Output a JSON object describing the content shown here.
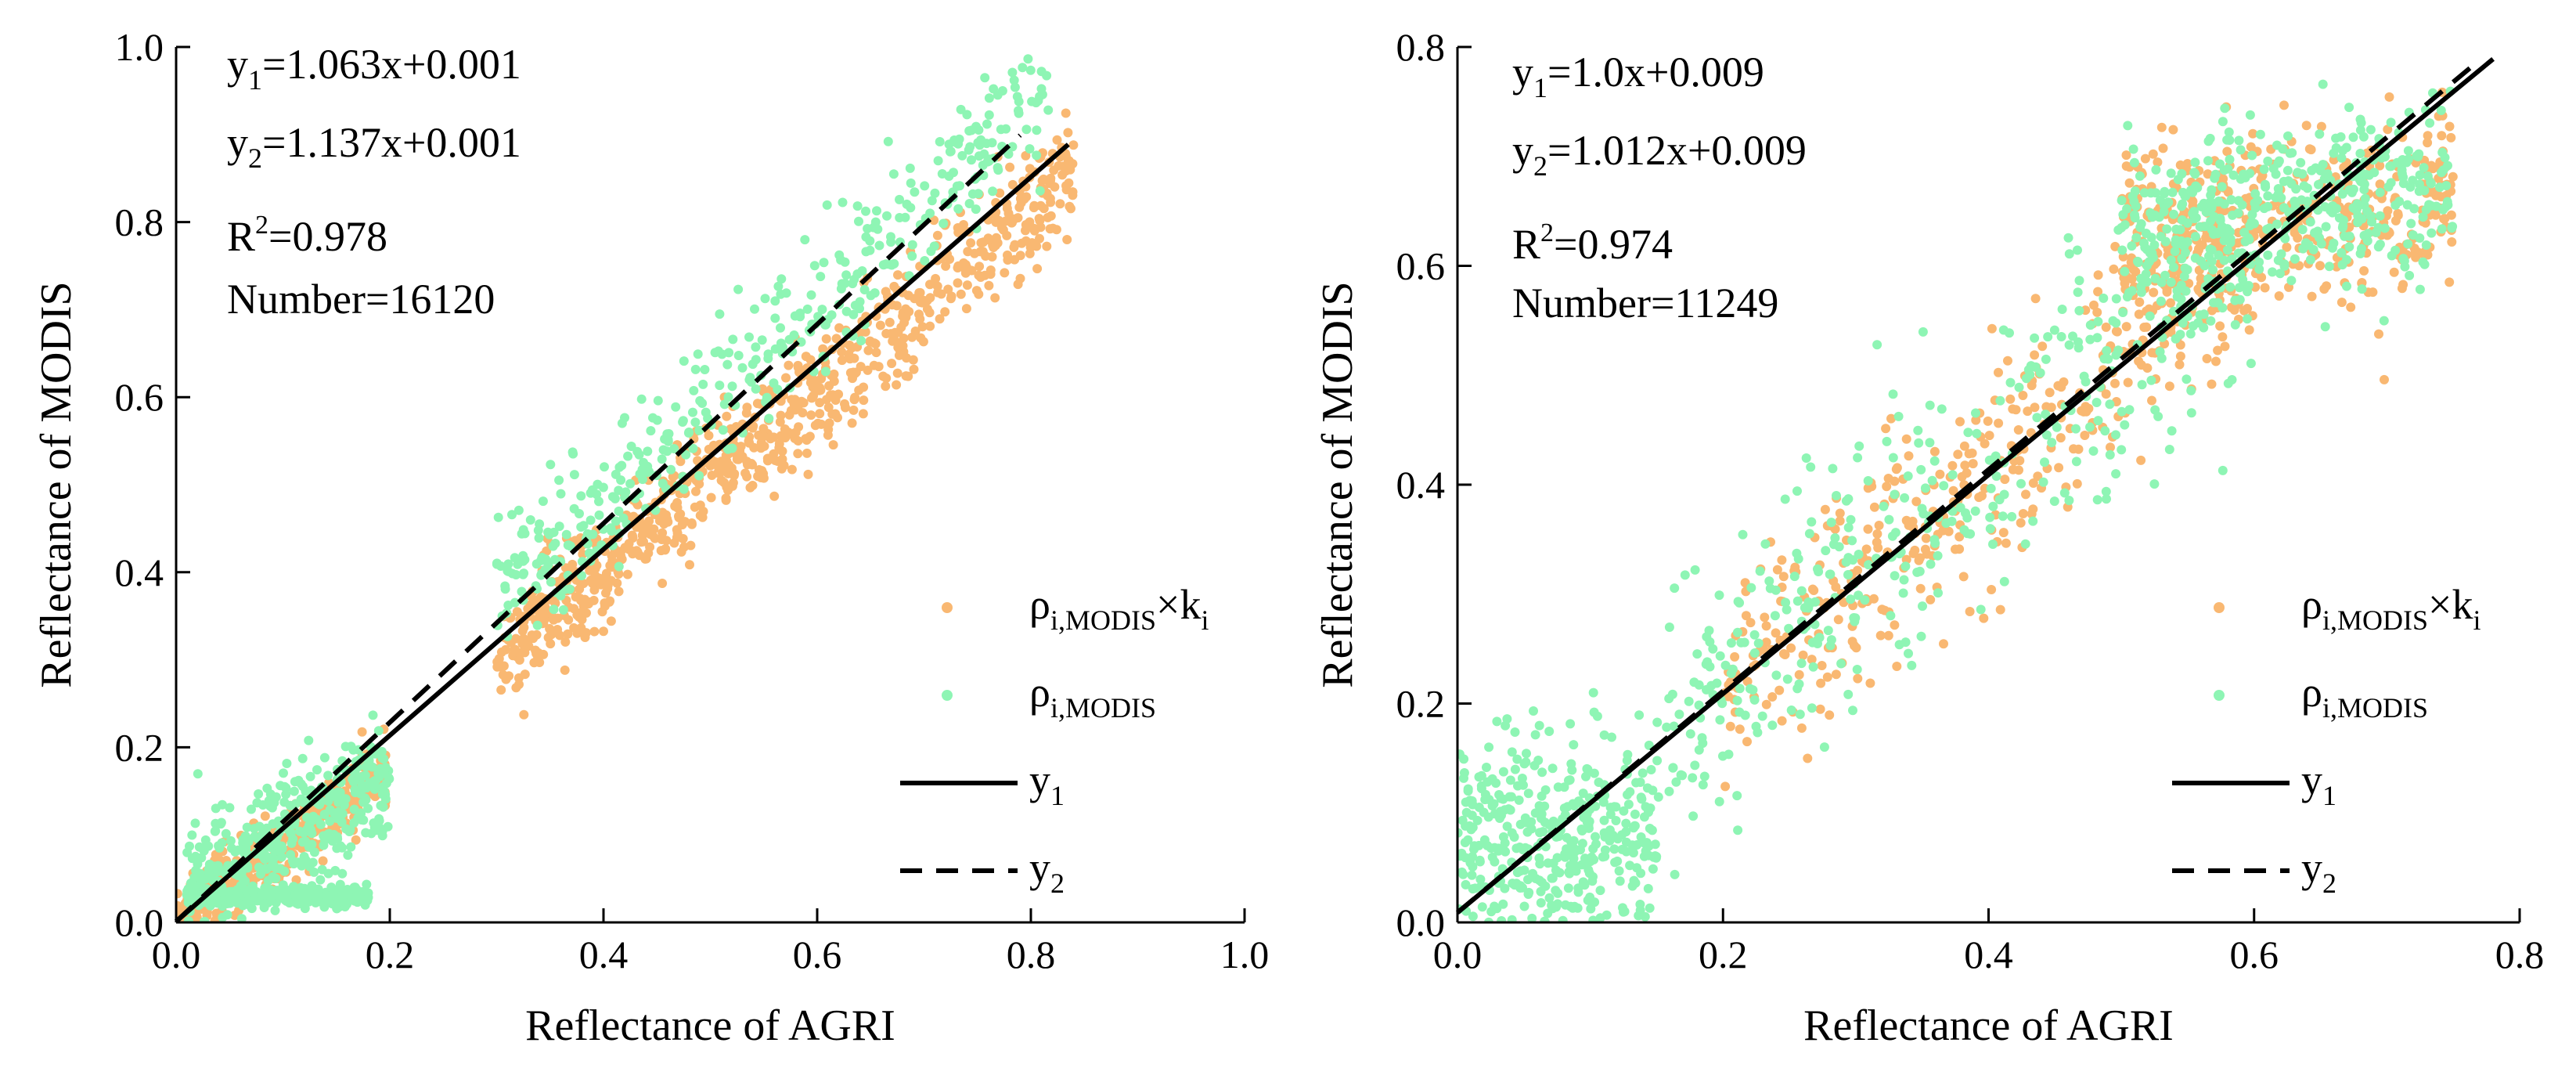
{
  "chart_data": [
    {
      "type": "scatter",
      "xlabel": "Reflectance of AGRI",
      "ylabel": "Reflectance of MODIS",
      "xlim": [
        0.0,
        1.0
      ],
      "ylim": [
        0.0,
        1.0
      ],
      "xticks": [
        "0.0",
        "0.2",
        "0.4",
        "0.6",
        "0.8",
        "1.0"
      ],
      "yticks": [
        "0.0",
        "0.2",
        "0.4",
        "0.6",
        "0.8",
        "1.0"
      ],
      "grid": false,
      "legend_position": "bottom-right",
      "annotations": {
        "eq1": {
          "pre": "y",
          "sub": "1",
          "post": "=1.063x+0.001"
        },
        "eq2": {
          "pre": "y",
          "sub": "2",
          "post": "=1.137x+0.001"
        },
        "r2": {
          "pre": "R",
          "sup": "2",
          "post": "=0.978"
        },
        "number": "Number=16120"
      },
      "series": [
        {
          "name": {
            "pre": "ρ",
            "sub": "i,MODIS",
            "post": "×k",
            "sub2": "i"
          },
          "kind": "scatter",
          "color": "#f9b872",
          "clusters": [
            {
              "x": [
                0.55,
                0.84
              ],
              "slope": 1.063,
              "intercept": -0.035,
              "spread": 0.035
            },
            {
              "x": [
                0.3,
                0.55
              ],
              "slope": 1.063,
              "intercept": -0.02,
              "spread": 0.03
            },
            {
              "x": [
                0.0,
                0.2
              ],
              "slope": 0.9,
              "intercept": 0.0,
              "spread": 0.02
            }
          ]
        },
        {
          "name": {
            "pre": "ρ",
            "sub": "i,MODIS"
          },
          "kind": "scatter",
          "color": "#8ef5b4",
          "clusters": [
            {
              "x": [
                0.3,
                0.82
              ],
              "slope": 1.137,
              "intercept": 0.02,
              "spread": 0.04
            },
            {
              "x": [
                0.01,
                0.2
              ],
              "slope": 0.7,
              "intercept": 0.03,
              "spread": 0.035
            },
            {
              "x": [
                0.01,
                0.18
              ],
              "slope": 0.0,
              "intercept": 0.03,
              "spread": 0.005
            }
          ]
        },
        {
          "name": {
            "pre": "y",
            "sub": "1"
          },
          "kind": "line",
          "style": "solid",
          "color": "#000000",
          "slope": 1.063,
          "intercept": 0.001,
          "x_range": [
            0.0,
            0.835
          ]
        },
        {
          "name": {
            "pre": "y",
            "sub": "2"
          },
          "kind": "line",
          "style": "dashed",
          "color": "#000000",
          "slope": 1.137,
          "intercept": 0.001,
          "x_range": [
            0.0,
            0.79
          ]
        }
      ]
    },
    {
      "type": "scatter",
      "xlabel": "Reflectance of AGRI",
      "ylabel": "Reflectance of MODIS",
      "xlim": [
        0.0,
        0.8
      ],
      "ylim": [
        0.0,
        0.8
      ],
      "xticks": [
        "0.0",
        "0.2",
        "0.4",
        "0.6",
        "0.8"
      ],
      "yticks": [
        "0.0",
        "0.2",
        "0.4",
        "0.6",
        "0.8"
      ],
      "grid": false,
      "legend_position": "bottom-right",
      "annotations": {
        "eq1": {
          "pre": "y",
          "sub": "1",
          "post": "=1.0x+0.009"
        },
        "eq2": {
          "pre": "y",
          "sub": "2",
          "post": "=1.012x+0.009"
        },
        "r2": {
          "pre": "R",
          "sup": "2",
          "post": "=0.974"
        },
        "number": "Number=11249"
      },
      "series": [
        {
          "name": {
            "pre": "ρ",
            "sub": "i,MODIS",
            "post": "×k",
            "sub2": "i"
          },
          "kind": "scatter",
          "color": "#f9b872",
          "clusters": [
            {
              "x": [
                0.2,
                0.6
              ],
              "slope": 1.0,
              "intercept": 0.02,
              "spread": 0.05
            },
            {
              "x": [
                0.5,
                0.75
              ],
              "slope": 0.15,
              "intercept": 0.55,
              "spread": 0.04
            }
          ]
        },
        {
          "name": {
            "pre": "ρ",
            "sub": "i,MODIS"
          },
          "kind": "scatter",
          "color": "#8ef5b4",
          "clusters": [
            {
              "x": [
                0.15,
                0.6
              ],
              "slope": 1.0,
              "intercept": 0.02,
              "spread": 0.06
            },
            {
              "x": [
                0.5,
                0.75
              ],
              "slope": 0.15,
              "intercept": 0.56,
              "spread": 0.04
            },
            {
              "x": [
                0.0,
                0.15
              ],
              "slope": 0.0,
              "intercept": 0.07,
              "spread": 0.05
            }
          ]
        },
        {
          "name": {
            "pre": "y",
            "sub": "1"
          },
          "kind": "line",
          "style": "solid",
          "color": "#000000",
          "slope": 1.0,
          "intercept": 0.009,
          "x_range": [
            0.0,
            0.78
          ]
        },
        {
          "name": {
            "pre": "y",
            "sub": "2"
          },
          "kind": "line",
          "style": "dashed",
          "color": "#000000",
          "slope": 1.012,
          "intercept": 0.009,
          "x_range": [
            0.0,
            0.77
          ]
        }
      ]
    }
  ]
}
